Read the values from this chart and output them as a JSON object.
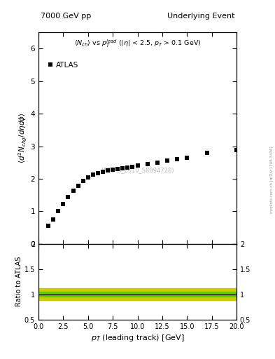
{
  "title_left": "7000 GeV pp",
  "title_right": "Underlying Event",
  "ylabel_main": "$\\langle d^2 N_{chg}/d\\eta d\\phi \\rangle$",
  "ylabel_ratio": "Ratio to ATLAS",
  "xlabel": "$p_T$ (leading track) [GeV]",
  "annotation_main": "$\\langle N_{ch} \\rangle$ vs $p_T^{lead}$ (|$\\eta$| < 2.5, $p_T$ > 0.1 GeV)",
  "dataset_label": "(ATLAS_2010_S8894728)",
  "legend_label": "ATLAS",
  "xlim": [
    0,
    20
  ],
  "ylim_main": [
    0,
    6.5
  ],
  "ylim_ratio": [
    0.5,
    2.0
  ],
  "yticks_main": [
    0,
    1,
    2,
    3,
    4,
    5,
    6
  ],
  "yticks_ratio": [
    0.5,
    1.0,
    1.5,
    2.0
  ],
  "data_x": [
    1.0,
    1.5,
    2.0,
    2.5,
    3.0,
    3.5,
    4.0,
    4.5,
    5.0,
    5.5,
    6.0,
    6.5,
    7.0,
    7.5,
    8.0,
    8.5,
    9.0,
    9.5,
    10.0,
    11.0,
    12.0,
    13.0,
    14.0,
    15.0,
    17.0,
    20.0
  ],
  "data_y": [
    0.55,
    0.75,
    1.0,
    1.22,
    1.45,
    1.63,
    1.79,
    1.93,
    2.04,
    2.12,
    2.18,
    2.22,
    2.25,
    2.27,
    2.3,
    2.32,
    2.35,
    2.37,
    2.4,
    2.45,
    2.5,
    2.55,
    2.6,
    2.65,
    2.8,
    2.88
  ],
  "marker_color": "#000000",
  "marker_size": 4,
  "ratio_line_y": 1.0,
  "ratio_green_band": [
    0.96,
    1.05
  ],
  "ratio_yellow_band": [
    0.89,
    1.12
  ],
  "green_color": "#66cc00",
  "yellow_color": "#cccc00",
  "watermark": "mcplots.cern.ch [arXiv:1306.3436]",
  "background_color": "#ffffff"
}
